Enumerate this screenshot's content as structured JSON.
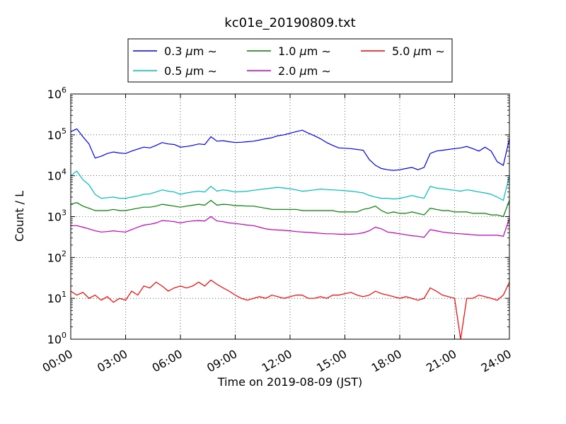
{
  "chart_data": {
    "type": "line",
    "title": "kc01e_20190809.txt",
    "xlabel": "Time on 2019-08-09 (JST)",
    "ylabel": "Count / L",
    "y_scale": "log",
    "ylim": [
      1,
      1000000
    ],
    "xlim": [
      "00:00",
      "24:00"
    ],
    "x_ticks": [
      "00:00",
      "03:00",
      "06:00",
      "09:00",
      "12:00",
      "15:00",
      "18:00",
      "21:00",
      "24:00"
    ],
    "y_ticks": [
      {
        "base": "10",
        "exp": "0"
      },
      {
        "base": "10",
        "exp": "1"
      },
      {
        "base": "10",
        "exp": "2"
      },
      {
        "base": "10",
        "exp": "3"
      },
      {
        "base": "10",
        "exp": "4"
      },
      {
        "base": "10",
        "exp": "5"
      },
      {
        "base": "10",
        "exp": "6"
      }
    ],
    "grid": true,
    "legend_position": "top",
    "x": [
      "00:00",
      "00:20",
      "00:40",
      "01:00",
      "01:20",
      "01:40",
      "02:00",
      "02:20",
      "02:40",
      "03:00",
      "03:20",
      "03:40",
      "04:00",
      "04:20",
      "04:40",
      "05:00",
      "05:20",
      "05:40",
      "06:00",
      "06:20",
      "06:40",
      "07:00",
      "07:20",
      "07:40",
      "08:00",
      "08:20",
      "08:40",
      "09:00",
      "09:20",
      "09:40",
      "10:00",
      "10:20",
      "10:40",
      "11:00",
      "11:20",
      "11:40",
      "12:00",
      "12:20",
      "12:40",
      "13:00",
      "13:20",
      "13:40",
      "14:00",
      "14:20",
      "14:40",
      "15:00",
      "15:20",
      "15:40",
      "16:00",
      "16:20",
      "16:40",
      "17:00",
      "17:20",
      "17:40",
      "18:00",
      "18:20",
      "18:40",
      "19:00",
      "19:20",
      "19:40",
      "20:00",
      "20:20",
      "20:40",
      "21:00",
      "21:20",
      "21:40",
      "22:00",
      "22:20",
      "22:40",
      "23:00",
      "23:20",
      "23:40",
      "24:00"
    ],
    "series": [
      {
        "name": "0.3",
        "color": "#0000ff",
        "values": [
          120000,
          140000,
          90000,
          60000,
          27000,
          30000,
          35000,
          38000,
          36000,
          35000,
          40000,
          45000,
          50000,
          48000,
          55000,
          65000,
          60000,
          58000,
          50000,
          52000,
          55000,
          60000,
          58000,
          90000,
          70000,
          72000,
          68000,
          65000,
          66000,
          68000,
          70000,
          75000,
          80000,
          85000,
          95000,
          100000,
          110000,
          120000,
          130000,
          110000,
          95000,
          80000,
          65000,
          55000,
          48000,
          47000,
          46000,
          44000,
          42000,
          25000,
          18000,
          15000,
          14000,
          13500,
          14000,
          15000,
          16000,
          14000,
          16000,
          35000,
          40000,
          42000,
          44000,
          46000,
          48000,
          52000,
          46000,
          40000,
          50000,
          40000,
          22000,
          18000,
          80000
        ]
      },
      {
        "name": "0.5",
        "color": "#00bfbf",
        "values": [
          10000,
          13000,
          8000,
          6000,
          3500,
          2800,
          2900,
          3000,
          2800,
          2800,
          3000,
          3200,
          3500,
          3600,
          4000,
          4500,
          4200,
          4000,
          3500,
          3800,
          4000,
          4200,
          4000,
          5500,
          4200,
          4500,
          4300,
          4000,
          4100,
          4200,
          4400,
          4600,
          4800,
          5000,
          5200,
          5000,
          4800,
          4500,
          4200,
          4300,
          4500,
          4700,
          4600,
          4500,
          4400,
          4300,
          4200,
          4000,
          3800,
          3300,
          3000,
          2800,
          2800,
          2700,
          2800,
          3000,
          3300,
          3000,
          2800,
          5500,
          5000,
          4800,
          4600,
          4400,
          4200,
          4500,
          4300,
          4000,
          3800,
          3500,
          3000,
          2500,
          10000
        ]
      },
      {
        "name": "1.0",
        "color": "#008000",
        "values": [
          2000,
          2200,
          1800,
          1600,
          1400,
          1400,
          1400,
          1500,
          1400,
          1400,
          1500,
          1600,
          1700,
          1700,
          1800,
          2000,
          1900,
          1800,
          1700,
          1800,
          1900,
          2000,
          1900,
          2500,
          1900,
          2000,
          1950,
          1850,
          1850,
          1800,
          1800,
          1700,
          1600,
          1500,
          1500,
          1500,
          1500,
          1500,
          1400,
          1400,
          1400,
          1400,
          1400,
          1400,
          1300,
          1300,
          1300,
          1300,
          1500,
          1600,
          1800,
          1400,
          1200,
          1300,
          1200,
          1200,
          1300,
          1200,
          1100,
          1600,
          1500,
          1400,
          1400,
          1300,
          1300,
          1300,
          1200,
          1200,
          1200,
          1100,
          1100,
          1000,
          2500
        ]
      },
      {
        "name": "2.0",
        "color": "#bf00bf",
        "values": [
          600,
          600,
          550,
          500,
          450,
          420,
          430,
          450,
          430,
          420,
          480,
          550,
          620,
          650,
          700,
          800,
          780,
          750,
          700,
          750,
          780,
          800,
          780,
          1000,
          780,
          750,
          700,
          680,
          650,
          620,
          600,
          550,
          500,
          480,
          470,
          460,
          450,
          430,
          420,
          410,
          400,
          390,
          380,
          380,
          370,
          370,
          370,
          380,
          400,
          450,
          550,
          500,
          420,
          400,
          380,
          360,
          340,
          330,
          310,
          480,
          450,
          420,
          400,
          390,
          380,
          370,
          360,
          350,
          350,
          350,
          350,
          330,
          900
        ]
      },
      {
        "name": "5.0",
        "color": "#ff0000",
        "values": [
          15,
          12,
          14,
          10,
          12,
          9,
          11,
          8,
          10,
          9,
          15,
          12,
          20,
          18,
          25,
          20,
          15,
          18,
          20,
          18,
          20,
          25,
          20,
          28,
          22,
          18,
          15,
          12,
          10,
          9,
          10,
          11,
          10,
          12,
          11,
          10,
          11,
          12,
          12,
          10,
          10,
          11,
          10,
          12,
          12,
          13,
          14,
          12,
          11,
          12,
          15,
          13,
          12,
          11,
          10,
          11,
          10,
          9,
          10,
          18,
          15,
          12,
          11,
          10,
          1,
          10,
          10,
          12,
          11,
          10,
          9,
          12,
          25
        ]
      }
    ]
  },
  "legend": {
    "items": [
      {
        "label": "0.3",
        "unit": "μm",
        "suffix": "∼",
        "color": "#0000ff"
      },
      {
        "label": "1.0",
        "unit": "μm",
        "suffix": "∼",
        "color": "#008000"
      },
      {
        "label": "5.0",
        "unit": "μm",
        "suffix": "∼",
        "color": "#ff0000"
      },
      {
        "label": "0.5",
        "unit": "μm",
        "suffix": "∼",
        "color": "#00bfbf"
      },
      {
        "label": "2.0",
        "unit": "μm",
        "suffix": "∼",
        "color": "#bf00bf"
      }
    ]
  }
}
